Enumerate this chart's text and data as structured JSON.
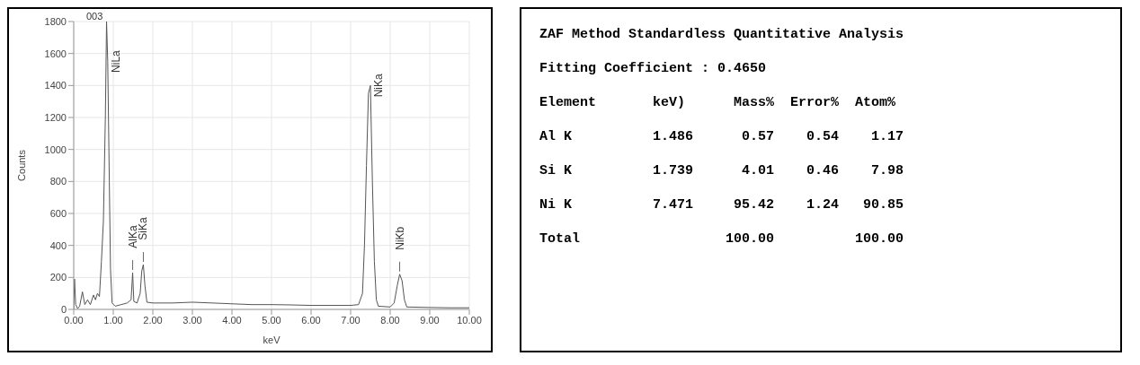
{
  "chart_data": [
    {
      "type": "line",
      "title": "003",
      "xlabel": "keV",
      "ylabel": "Counts",
      "color": "#555555",
      "grid": true,
      "xlim": [
        0,
        10
      ],
      "ylim": [
        0,
        1800
      ],
      "xticks": [
        {
          "value": 0,
          "label": "0.00"
        },
        {
          "value": 1,
          "label": "1.00"
        },
        {
          "value": 2,
          "label": "2.00"
        },
        {
          "value": 3,
          "label": "3.00"
        },
        {
          "value": 4,
          "label": "4.00"
        },
        {
          "value": 5,
          "label": "5.00"
        },
        {
          "value": 6,
          "label": "6.00"
        },
        {
          "value": 7,
          "label": "7.00"
        },
        {
          "value": 8,
          "label": "8.00"
        },
        {
          "value": 9,
          "label": "9.00"
        },
        {
          "value": 10,
          "label": "10.00"
        }
      ],
      "yticks": [
        0,
        200,
        400,
        600,
        800,
        1000,
        1200,
        1400,
        1600,
        1800
      ],
      "x": [
        0,
        0.02,
        0.05,
        0.1,
        0.15,
        0.22,
        0.28,
        0.35,
        0.42,
        0.5,
        0.55,
        0.6,
        0.65,
        0.7,
        0.75,
        0.8,
        0.83,
        0.86,
        0.9,
        0.93,
        0.97,
        1.05,
        1.2,
        1.35,
        1.45,
        1.49,
        1.52,
        1.6,
        1.68,
        1.72,
        1.76,
        1.8,
        1.85,
        2,
        2.5,
        3,
        3.5,
        4,
        4.5,
        5,
        5.5,
        6,
        6.5,
        7,
        7.2,
        7.3,
        7.35,
        7.4,
        7.45,
        7.5,
        7.55,
        7.6,
        7.65,
        7.7,
        8,
        8.1,
        8.18,
        8.24,
        8.3,
        8.36,
        8.42,
        9,
        9.5,
        10
      ],
      "values": [
        0,
        190,
        30,
        5,
        20,
        110,
        30,
        60,
        30,
        90,
        60,
        100,
        80,
        300,
        550,
        1200,
        1800,
        1550,
        800,
        250,
        40,
        20,
        30,
        40,
        60,
        230,
        50,
        40,
        100,
        240,
        280,
        150,
        45,
        40,
        40,
        45,
        40,
        35,
        30,
        30,
        28,
        25,
        25,
        25,
        30,
        100,
        400,
        900,
        1350,
        1400,
        800,
        300,
        60,
        20,
        15,
        40,
        150,
        220,
        180,
        60,
        15,
        12,
        10,
        10
      ],
      "annotations": [
        {
          "text": "NiLa",
          "x": 0.86,
          "y": 1550
        },
        {
          "text": "AlKa",
          "x": 1.49,
          "y": 230
        },
        {
          "text": "SiKa",
          "x": 1.76,
          "y": 280
        },
        {
          "text": "NiKa",
          "x": 7.5,
          "y": 1400
        },
        {
          "text": "NiKb",
          "x": 8.24,
          "y": 220
        }
      ]
    },
    {
      "type": "other",
      "title": "ZAF Method Standardless Quantitative Analysis",
      "subtitle": "Fitting Coefficient : 0.4650",
      "annotations": [
        "Element       keV)      Mass%  Error%  Atom%",
        "Al K          1.486      0.57    0.54    1.17",
        "Si K          1.739      4.01    0.46    7.98",
        "Ni K          7.471     95.42    1.24   90.85",
        "Total                  100.00          100.00"
      ]
    }
  ]
}
